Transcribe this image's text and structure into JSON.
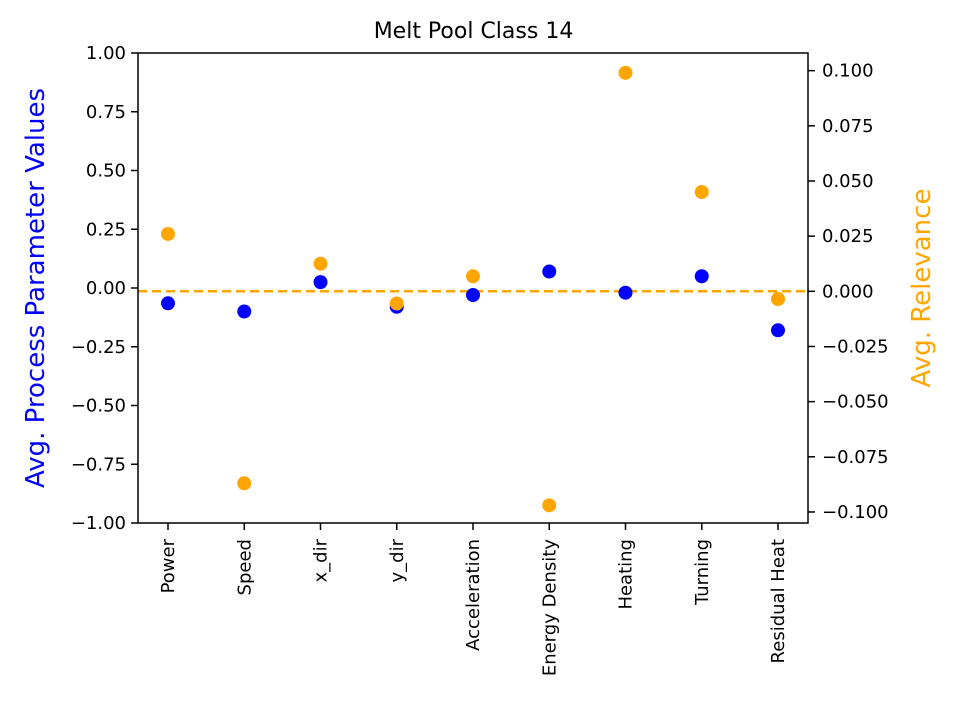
{
  "chart_data": {
    "type": "scatter",
    "title": "Melt Pool Class 14",
    "xlabel": "",
    "ylabel": "Avg. Process Parameter Values",
    "y2label": "Avg. Relevance",
    "categories": [
      "Power",
      "Speed",
      "x_dir",
      "y_dir",
      "Acceleration",
      "Energy Density",
      "Heating",
      "Turning",
      "Residual Heat"
    ],
    "ylim": [
      -1.0,
      1.0
    ],
    "y2lim": [
      -0.105,
      0.108
    ],
    "yticks": [
      "1.00",
      "0.75",
      "0.50",
      "0.25",
      "0.00",
      "−0.25",
      "−0.50",
      "−0.75",
      "−1.00"
    ],
    "yticks_values": [
      1.0,
      0.75,
      0.5,
      0.25,
      0.0,
      -0.25,
      -0.5,
      -0.75,
      -1.0
    ],
    "y2ticks": [
      "0.100",
      "0.075",
      "0.050",
      "0.025",
      "0.000",
      "−0.025",
      "−0.050",
      "−0.075",
      "−0.100"
    ],
    "y2ticks_values": [
      0.1,
      0.075,
      0.05,
      0.025,
      0.0,
      -0.025,
      -0.05,
      -0.075,
      -0.1
    ],
    "series": [
      {
        "axis": "left",
        "color": "#0000ff",
        "values": [
          -0.065,
          -0.1,
          0.025,
          -0.08,
          -0.03,
          0.07,
          -0.02,
          0.05,
          -0.18
        ]
      },
      {
        "axis": "right",
        "color": "#ffa500",
        "values": [
          0.026,
          -0.087,
          0.0125,
          -0.0055,
          0.0068,
          -0.097,
          0.099,
          0.045,
          -0.0035
        ]
      }
    ],
    "reference_line": {
      "axis": "right",
      "value": 0.0,
      "style": "dashed",
      "color": "#ffa500"
    },
    "grid": false,
    "legend": "none"
  }
}
